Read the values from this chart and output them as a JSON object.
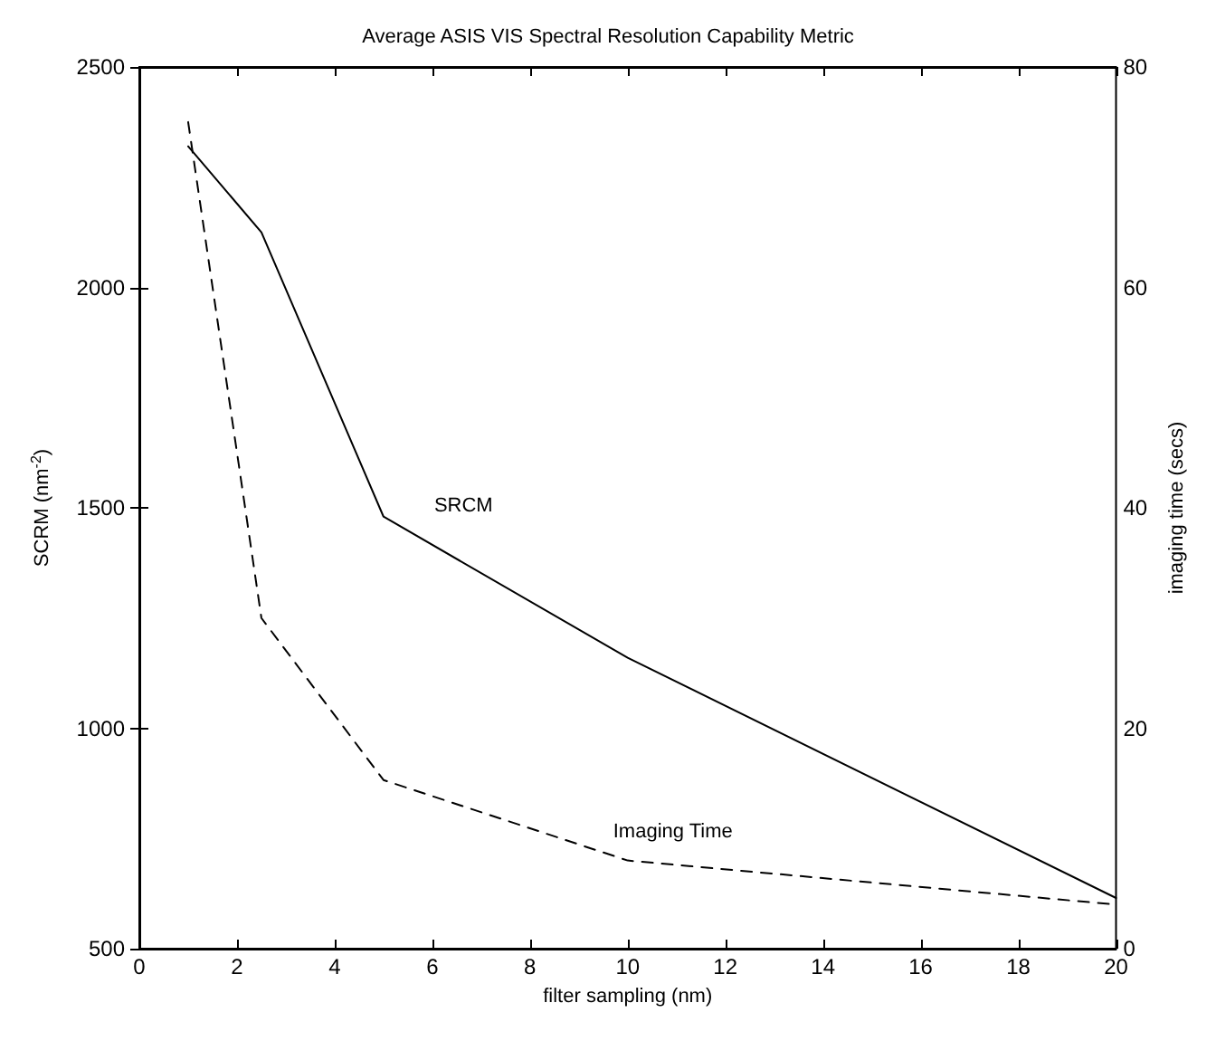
{
  "chart_data": {
    "type": "line",
    "title": "Average ASIS VIS Spectral Resolution Capability Metric",
    "xlabel": "filter sampling (nm)",
    "ylabel": "SCRM (nm$^{-2}$)",
    "y2label": "imaging time (secs)",
    "x": [
      1,
      2.5,
      5,
      10,
      20
    ],
    "series": [
      {
        "name": "SRCM",
        "color": "#000000",
        "line_style": "solid",
        "values": [
          2320,
          2125,
          1480,
          1160,
          615
        ]
      },
      {
        "name": "Imaging Time",
        "color": "#000000",
        "line_style": "dashed",
        "axis": "y2",
        "values": [
          75,
          30,
          15.3,
          8,
          4
        ]
      }
    ],
    "xlim": [
      0,
      20
    ],
    "xticks": [
      0,
      2,
      4,
      6,
      8,
      10,
      12,
      14,
      16,
      18,
      20
    ],
    "ylim": [
      500,
      2500
    ],
    "yticks": [
      500,
      1000,
      1500,
      2000,
      2500
    ],
    "y2lim": [
      0,
      80
    ],
    "y2ticks": [
      0,
      20,
      40,
      60,
      80
    ],
    "grid": false,
    "marker": "none"
  }
}
